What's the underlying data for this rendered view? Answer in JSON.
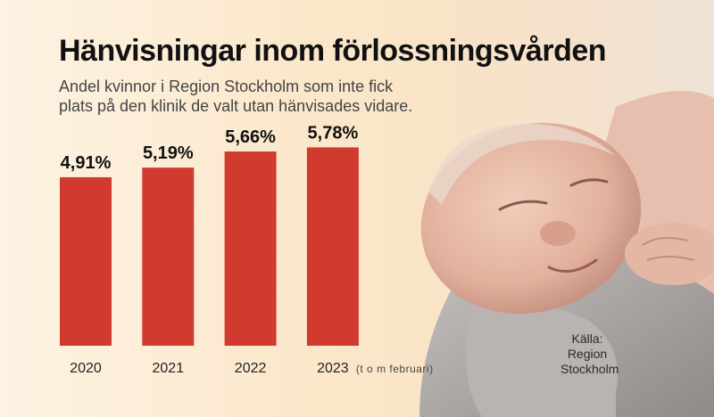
{
  "title": "Hänvisningar inom förlossningsvården",
  "subtitle_line1": "Andel kvinnor i Region Stockholm som inte fick",
  "subtitle_line2": "plats på den klinik de valt utan hänvisades vidare.",
  "source_lines": [
    "Källa:",
    "Region",
    "Stockholm"
  ],
  "colors": {
    "bar": "#d13a2f",
    "text": "#111111"
  },
  "photo": "newborn-baby-photo",
  "chart_data": {
    "type": "bar",
    "title": "Hänvisningar inom förlossningsvården",
    "categories": [
      "2020",
      "2021",
      "2022",
      "2023"
    ],
    "category_notes": [
      "",
      "",
      "",
      "(t o m februari)"
    ],
    "values": [
      4.91,
      5.19,
      5.66,
      5.78
    ],
    "value_labels": [
      "4,91%",
      "5,19%",
      "5,66%",
      "5,78%"
    ],
    "unit": "%",
    "ylim": [
      0,
      6.7
    ],
    "grid": false,
    "legend": "none"
  }
}
